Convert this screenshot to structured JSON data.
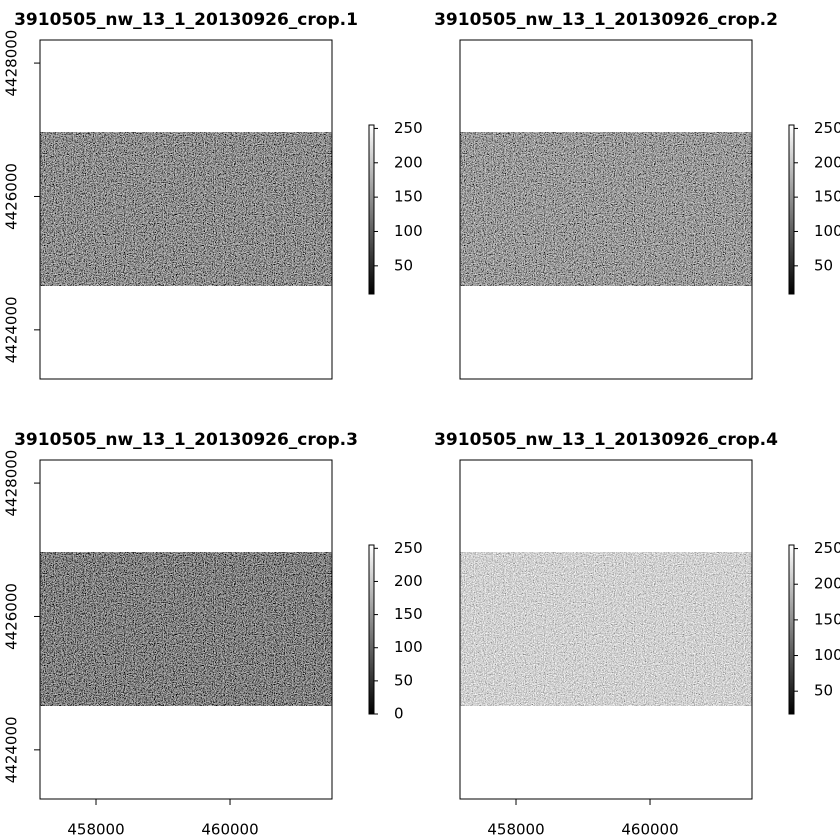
{
  "chart_data": [
    {
      "type": "raster",
      "title": "3910505_nw_13_1_20130926_crop.1",
      "xlim": [
        457164,
        461522
      ],
      "ylim": [
        4423263,
        4428346
      ],
      "raster_ylim": [
        4424660,
        4426960
      ],
      "yticks": [
        4424000,
        4426000,
        4428000
      ],
      "zlim": [
        9,
        255
      ],
      "zticks": [
        50,
        100,
        150,
        200,
        250
      ],
      "colors": [
        "#000000",
        "#ffffff"
      ]
    },
    {
      "type": "raster",
      "title": "3910505_nw_13_1_20130926_crop.2",
      "xlim": [
        457164,
        461522
      ],
      "ylim": [
        4423263,
        4428346
      ],
      "raster_ylim": [
        4424660,
        4426960
      ],
      "zlim": [
        9,
        255
      ],
      "zticks": [
        50,
        100,
        150,
        200,
        250
      ],
      "colors": [
        "#000000",
        "#ffffff"
      ]
    },
    {
      "type": "raster",
      "title": "3910505_nw_13_1_20130926_crop.3",
      "xlim": [
        457164,
        461522
      ],
      "ylim": [
        4423263,
        4428346
      ],
      "raster_ylim": [
        4424660,
        4426960
      ],
      "xticks": [
        458000,
        460000
      ],
      "yticks": [
        4424000,
        4426000,
        4428000
      ],
      "zlim": [
        0,
        255
      ],
      "zticks": [
        0,
        50,
        100,
        150,
        200,
        250
      ],
      "colors": [
        "#000000",
        "#ffffff"
      ]
    },
    {
      "type": "raster",
      "title": "3910505_nw_13_1_20130926_crop.4",
      "xlim": [
        457164,
        461522
      ],
      "ylim": [
        4423263,
        4428346
      ],
      "raster_ylim": [
        4424660,
        4426960
      ],
      "xticks": [
        458000,
        460000
      ],
      "zlim": [
        18,
        255
      ],
      "zticks": [
        50,
        100,
        150,
        200,
        250
      ],
      "colors": [
        "#000000",
        "#ffffff"
      ]
    }
  ]
}
